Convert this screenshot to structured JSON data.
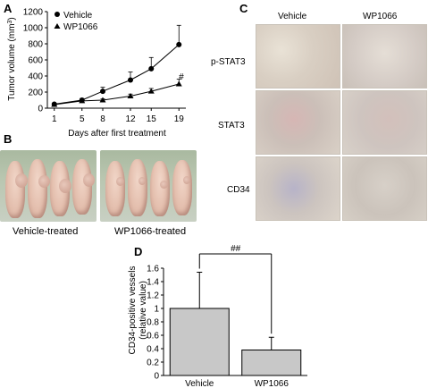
{
  "panels": {
    "a": "A",
    "b": "B",
    "c": "C",
    "d": "D"
  },
  "chart_a": {
    "type": "line",
    "ylabel_main": "Tumor volume (mm",
    "ylabel_sup": "3",
    "ylabel_close": ")",
    "xlabel": "Days after first treatment",
    "ylim": [
      0,
      1200
    ],
    "yticks": [
      "0",
      "200",
      "400",
      "600",
      "800",
      "1000",
      "1200"
    ],
    "xticks": [
      "1",
      "5",
      "8",
      "12",
      "15",
      "19"
    ],
    "legend": [
      "Vehicle",
      "WP1066"
    ],
    "annotation": "#"
  },
  "chart_data": [
    {
      "type": "line",
      "x": [
        1,
        5,
        8,
        12,
        15,
        19
      ],
      "series": [
        {
          "name": "Vehicle",
          "values": [
            50,
            100,
            210,
            350,
            490,
            790
          ],
          "errors": [
            10,
            20,
            50,
            100,
            140,
            240
          ],
          "marker": "circle"
        },
        {
          "name": "WP1066",
          "values": [
            45,
            90,
            100,
            150,
            210,
            300
          ],
          "errors": [
            8,
            15,
            15,
            25,
            35,
            60
          ],
          "marker": "triangle"
        }
      ],
      "xlabel": "Days after first treatment",
      "ylabel": "Tumor volume (mm3)",
      "ylim": [
        0,
        1200
      ],
      "legend_position": "top-left",
      "grid": false
    },
    {
      "type": "bar",
      "categories": [
        "Vehicle",
        "WP1066"
      ],
      "values": [
        1.0,
        0.38
      ],
      "errors": [
        0.54,
        0.19
      ],
      "ylabel": "CD34-positive vessels (relative value)",
      "ylim": [
        0,
        1.6
      ],
      "bar_color": "#c8c8c8",
      "grid": false
    }
  ],
  "chart_d": {
    "ylabel_line1": "CD34-positive vessels",
    "ylabel_line2": "(relative value)",
    "yticks": [
      "0",
      "0.2",
      "0.4",
      "0.6",
      "0.8",
      "1",
      "1.2",
      "1.4",
      "1.6"
    ],
    "significance": "##"
  },
  "panel_b": {
    "captions": [
      "Vehicle-treated",
      "WP1066-treated"
    ]
  },
  "panel_c": {
    "columns": [
      "Vehicle",
      "WP1066"
    ],
    "rows": [
      "p-STAT3",
      "STAT3",
      "CD34"
    ]
  }
}
